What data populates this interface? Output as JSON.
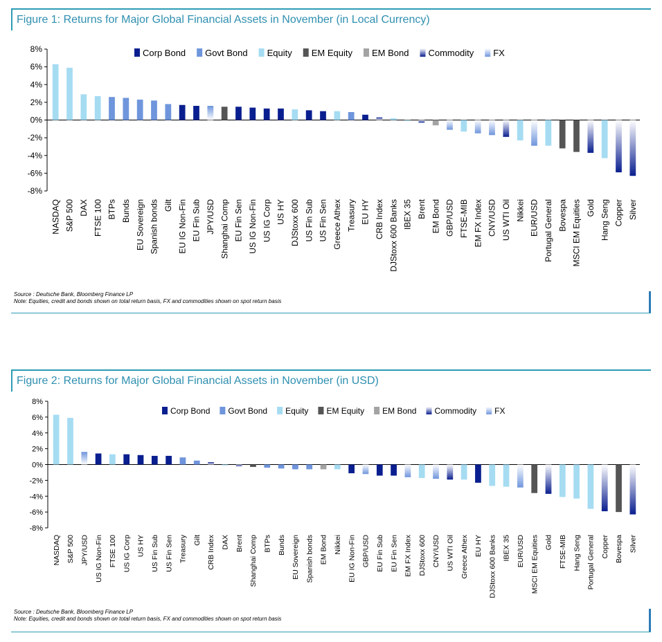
{
  "figures": [
    {
      "title": "Figure 1: Returns for Major Global Financial Assets in November (in Local Currency)",
      "source": "Source : Deutsche Bank, Bloomberg Finance LP",
      "note": "Note: Equities, credit and bonds shown on total return basis, FX and commodities shown on spot return basis"
    },
    {
      "title": "Figure 2: Returns for Major Global Financial Assets in November (in USD)",
      "source": "Source : Deutsche Bank, Bloomberg Finance LP",
      "note": "Note: Equities, credit and bonds shown on total return basis, FX and commodities shown on spot return basis"
    }
  ],
  "legend": [
    {
      "name": "Corp Bond",
      "color": "#0a1f8f",
      "style": "solid"
    },
    {
      "name": "Govt Bond",
      "color": "#6f95dc",
      "style": "solid"
    },
    {
      "name": "Equity",
      "color": "#a6dcf2",
      "style": "solid"
    },
    {
      "name": "EM Equity",
      "color": "#555555",
      "style": "solid"
    },
    {
      "name": "EM Bond",
      "color": "#a3a3a3",
      "style": "solid"
    },
    {
      "name": "Commodity",
      "color": "#0a1f8f",
      "style": "gradient"
    },
    {
      "name": "FX",
      "color": "#6f95dc",
      "style": "gradient"
    }
  ],
  "chart_data": [
    {
      "type": "bar",
      "ylim": [
        -8,
        8
      ],
      "yticks": [
        "8%",
        "6%",
        "4%",
        "2%",
        "0%",
        "-2%",
        "-4%",
        "-6%",
        "-8%"
      ],
      "legend_position": "top",
      "categories": [
        "NASDAQ",
        "S&P 500",
        "DAX",
        "FTSE 100",
        "BTPs",
        "Bunds",
        "EU Sovereign",
        "Spanish bonds",
        "Gilt",
        "EU IG Non-Fin",
        "EU Fin Sub",
        "JPY/USD",
        "Shanghai Comp",
        "EU Fin Sen",
        "US IG Non-Fin",
        "US IG Corp",
        "US HY",
        "DJStoxx 600",
        "US Fin Sub",
        "US Fin Sen",
        "Greece Athex",
        "Treasury",
        "EU HY",
        "CRB Index",
        "DJStoxx 600 Banks",
        "IBEX 35",
        "Brent",
        "EM Bond",
        "GBP/USD",
        "FTSE-MIB",
        "EM FX Index",
        "CNY/USD",
        "US WTI Oil",
        "Nikkei",
        "EUR/USD",
        "Portugal General",
        "Bovespa",
        "MSCI EM Equities",
        "Gold",
        "Hang Seng",
        "Copper",
        "Silver"
      ],
      "values": [
        6.3,
        5.9,
        2.9,
        2.7,
        2.6,
        2.5,
        2.3,
        2.2,
        1.8,
        1.7,
        1.6,
        1.6,
        1.5,
        1.5,
        1.4,
        1.3,
        1.3,
        1.2,
        1.1,
        1.0,
        1.0,
        0.9,
        0.6,
        0.3,
        0.2,
        -0.1,
        -0.3,
        -0.6,
        -1.1,
        -1.3,
        -1.5,
        -1.7,
        -1.9,
        -2.3,
        -2.9,
        -2.9,
        -3.2,
        -3.6,
        -3.7,
        -4.3,
        -5.9,
        -6.3
      ],
      "asset_class": [
        "Equity",
        "Equity",
        "Equity",
        "Equity",
        "Govt Bond",
        "Govt Bond",
        "Govt Bond",
        "Govt Bond",
        "Govt Bond",
        "Corp Bond",
        "Corp Bond",
        "FX",
        "EM Equity",
        "Corp Bond",
        "Corp Bond",
        "Corp Bond",
        "Corp Bond",
        "Equity",
        "Corp Bond",
        "Corp Bond",
        "Equity",
        "Govt Bond",
        "Corp Bond",
        "Commodity",
        "Equity",
        "Equity",
        "Commodity",
        "EM Bond",
        "FX",
        "Equity",
        "FX",
        "FX",
        "Commodity",
        "Equity",
        "FX",
        "Equity",
        "EM Equity",
        "EM Equity",
        "Commodity",
        "Equity",
        "Commodity",
        "Commodity"
      ]
    },
    {
      "type": "bar",
      "ylim": [
        -8,
        8
      ],
      "yticks": [
        "8%",
        "6%",
        "4%",
        "2%",
        "0%",
        "-2%",
        "-4%",
        "-6%",
        "-8%"
      ],
      "legend_position": "top",
      "categories": [
        "NASDAQ",
        "S&P 500",
        "JPY/USD",
        "US IG Non-Fin",
        "FTSE 100",
        "US IG Corp",
        "US HY",
        "US Fin Sub",
        "US Fin Sen",
        "Treasury",
        "Gilt",
        "CRB Index",
        "DAX",
        "Brent",
        "Shanghai Comp",
        "BTPs",
        "Bunds",
        "EU Sovereign",
        "Spanish bonds",
        "EM Bond",
        "Nikkei",
        "EU IG Non-Fin",
        "GBP/USD",
        "EU Fin Sub",
        "EU Fin Sen",
        "EM FX Index",
        "DJStoxx 600",
        "CNY/USD",
        "US WTI Oil",
        "Greece Athex",
        "EU HY",
        "DJStoxx 600 Banks",
        "IBEX 35",
        "EUR/USD",
        "MSCI EM Equities",
        "Gold",
        "FTSE-MIB",
        "Hang Seng",
        "Portugal General",
        "Copper",
        "Bovespa",
        "Silver"
      ],
      "values": [
        6.3,
        5.9,
        1.6,
        1.4,
        1.3,
        1.3,
        1.2,
        1.1,
        1.1,
        0.9,
        0.5,
        0.3,
        -0.1,
        -0.2,
        -0.3,
        -0.4,
        -0.5,
        -0.6,
        -0.6,
        -0.6,
        -0.6,
        -1.1,
        -1.2,
        -1.4,
        -1.4,
        -1.6,
        -1.7,
        -1.8,
        -1.9,
        -1.9,
        -2.3,
        -2.7,
        -2.8,
        -2.9,
        -3.6,
        -3.7,
        -4.1,
        -4.3,
        -5.6,
        -5.9,
        -6.0,
        -6.3
      ],
      "asset_class": [
        "Equity",
        "Equity",
        "FX",
        "Corp Bond",
        "Equity",
        "Corp Bond",
        "Corp Bond",
        "Corp Bond",
        "Corp Bond",
        "Govt Bond",
        "Govt Bond",
        "Commodity",
        "Equity",
        "Commodity",
        "EM Equity",
        "Govt Bond",
        "Govt Bond",
        "Govt Bond",
        "Govt Bond",
        "EM Bond",
        "Equity",
        "Corp Bond",
        "FX",
        "Corp Bond",
        "Corp Bond",
        "FX",
        "Equity",
        "FX",
        "Commodity",
        "Equity",
        "Corp Bond",
        "Equity",
        "Equity",
        "FX",
        "EM Equity",
        "Commodity",
        "Equity",
        "Equity",
        "Equity",
        "Commodity",
        "EM Equity",
        "Commodity"
      ]
    }
  ]
}
